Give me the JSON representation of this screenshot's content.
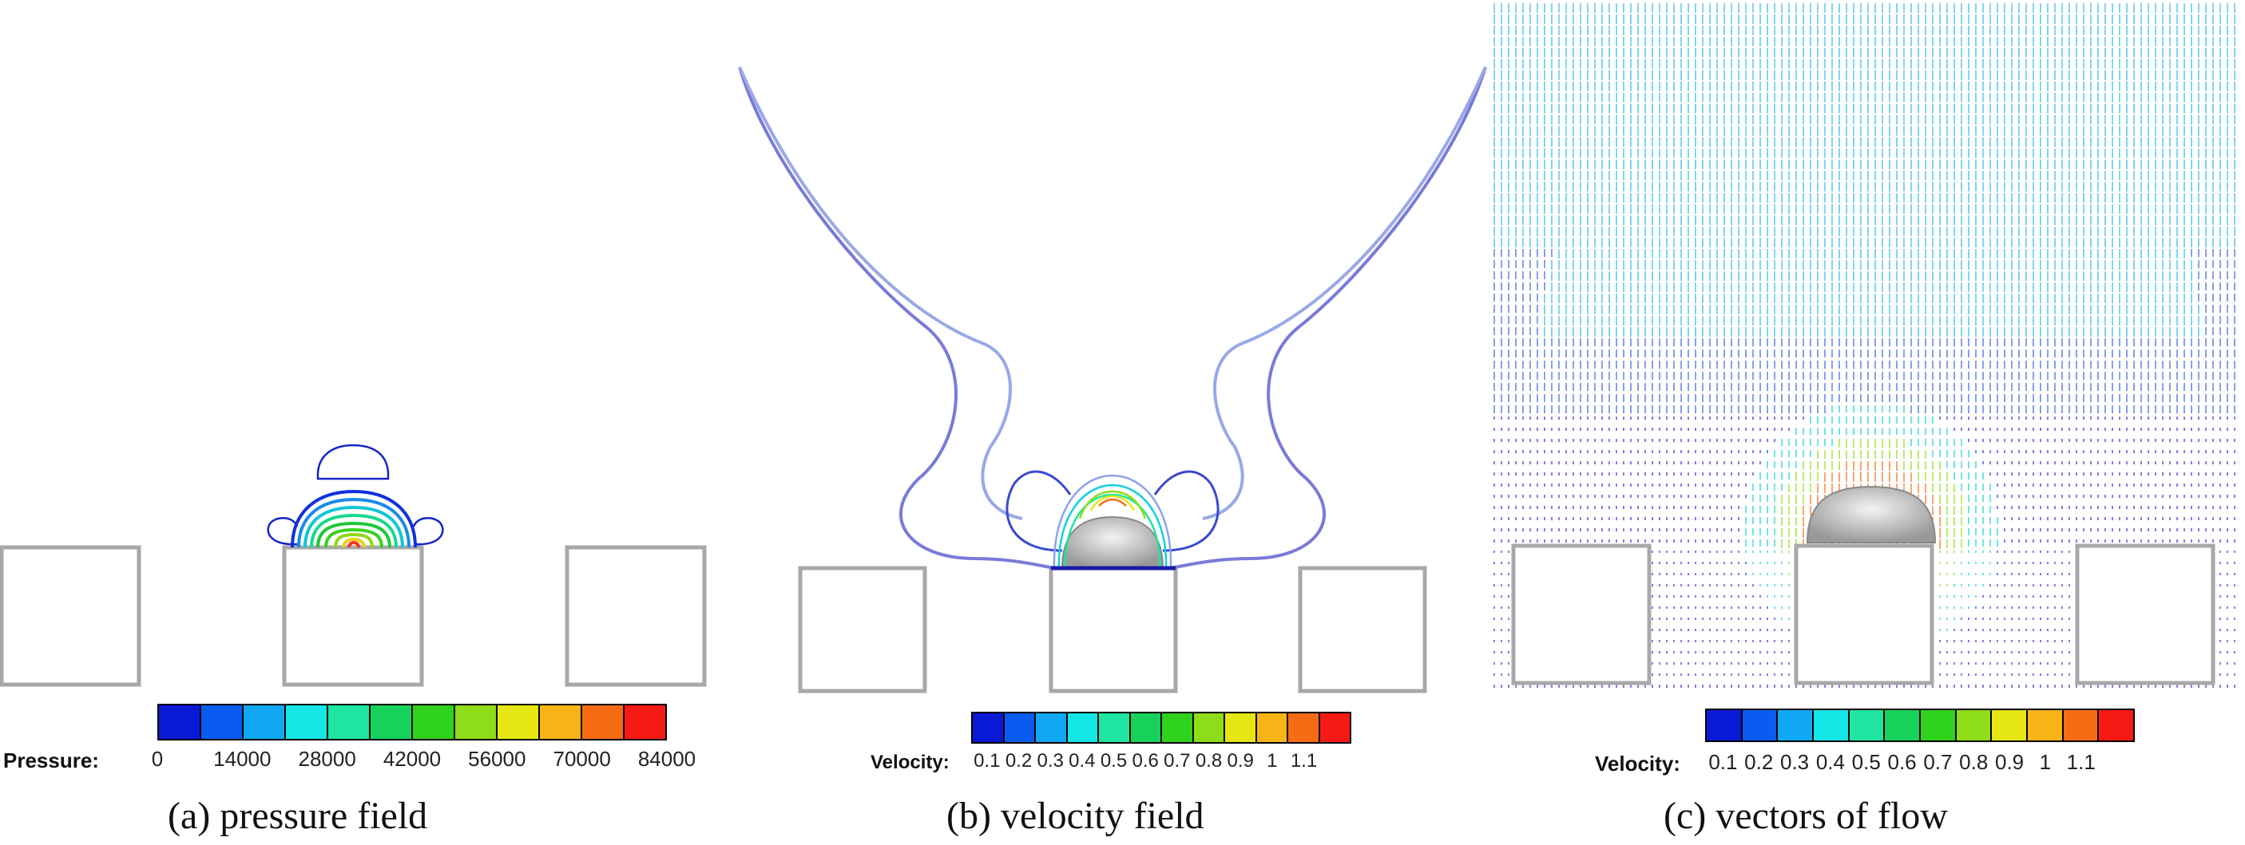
{
  "panels": [
    {
      "caption": "(a) pressure field",
      "legend_label": "Pressure:",
      "ticks": [
        "0",
        "14000",
        "28000",
        "42000",
        "56000",
        "70000",
        "84000"
      ],
      "colors": [
        "#0a19d6",
        "#0a5cf0",
        "#10a8f2",
        "#15e6e6",
        "#1ee6a0",
        "#16d25a",
        "#2fd21c",
        "#8fdc18",
        "#e6e614",
        "#f7b417",
        "#f56c14",
        "#f51a14"
      ]
    },
    {
      "caption": "(b) velocity field",
      "legend_label": "Velocity:",
      "ticks": [
        "0.1",
        "0.2",
        "0.3",
        "0.4",
        "0.5",
        "0.6",
        "0.7",
        "0.8",
        "0.9",
        "1",
        "1.1"
      ],
      "colors": [
        "#0a19d6",
        "#0a5cf0",
        "#10a8f2",
        "#15e6e6",
        "#1ee6a0",
        "#16d25a",
        "#2fd21c",
        "#8fdc18",
        "#e6e614",
        "#f7b417",
        "#f56c14",
        "#f51a14"
      ]
    },
    {
      "caption": "(c) vectors of flow",
      "legend_label": "Velocity:",
      "ticks": [
        "0.1",
        "0.2",
        "0.3",
        "0.4",
        "0.5",
        "0.6",
        "0.7",
        "0.8",
        "0.9",
        "1",
        "1.1"
      ],
      "colors": [
        "#0a19d6",
        "#0a5cf0",
        "#10a8f2",
        "#15e6e6",
        "#1ee6a0",
        "#16d25a",
        "#2fd21c",
        "#8fdc18",
        "#e6e614",
        "#f7b417",
        "#f56c14",
        "#f51a14"
      ]
    }
  ]
}
